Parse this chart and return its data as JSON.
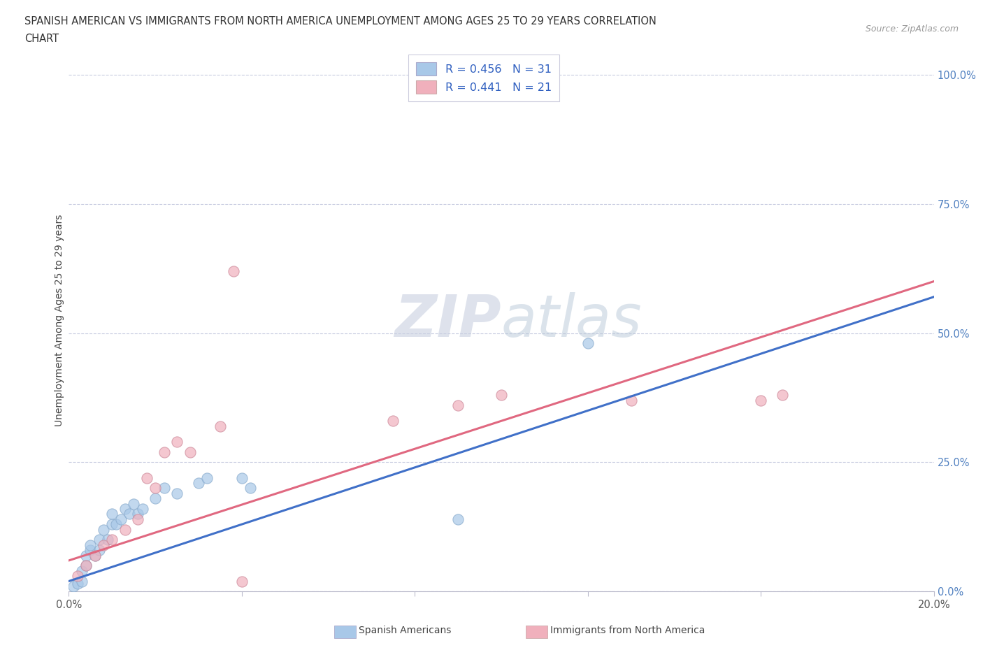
{
  "title_line1": "SPANISH AMERICAN VS IMMIGRANTS FROM NORTH AMERICA UNEMPLOYMENT AMONG AGES 25 TO 29 YEARS CORRELATION",
  "title_line2": "CHART",
  "source_text": "Source: ZipAtlas.com",
  "ylabel": "Unemployment Among Ages 25 to 29 years",
  "xlim": [
    0.0,
    0.2
  ],
  "ylim": [
    0.0,
    1.05
  ],
  "ytick_values": [
    0.0,
    0.25,
    0.5,
    0.75,
    1.0
  ],
  "blue_color": "#a8c8e8",
  "pink_color": "#f0b0bc",
  "blue_line_color": "#4070c8",
  "pink_line_color": "#e06880",
  "grid_color": "#c8cce0",
  "watermark_color": "#c8d0e0",
  "blue_scatter_x": [
    0.001,
    0.002,
    0.003,
    0.003,
    0.004,
    0.004,
    0.005,
    0.005,
    0.006,
    0.007,
    0.007,
    0.008,
    0.009,
    0.01,
    0.01,
    0.011,
    0.012,
    0.013,
    0.014,
    0.015,
    0.016,
    0.017,
    0.02,
    0.022,
    0.025,
    0.03,
    0.032,
    0.04,
    0.042,
    0.09,
    0.12
  ],
  "blue_scatter_y": [
    0.01,
    0.015,
    0.02,
    0.04,
    0.05,
    0.07,
    0.08,
    0.09,
    0.07,
    0.08,
    0.1,
    0.12,
    0.1,
    0.13,
    0.15,
    0.13,
    0.14,
    0.16,
    0.15,
    0.17,
    0.15,
    0.16,
    0.18,
    0.2,
    0.19,
    0.21,
    0.22,
    0.22,
    0.2,
    0.14,
    0.48
  ],
  "pink_scatter_x": [
    0.002,
    0.004,
    0.006,
    0.008,
    0.01,
    0.013,
    0.016,
    0.018,
    0.02,
    0.022,
    0.025,
    0.028,
    0.035,
    0.038,
    0.04,
    0.075,
    0.09,
    0.1,
    0.13,
    0.16,
    0.165
  ],
  "pink_scatter_y": [
    0.03,
    0.05,
    0.07,
    0.09,
    0.1,
    0.12,
    0.14,
    0.22,
    0.2,
    0.27,
    0.29,
    0.27,
    0.32,
    0.62,
    0.02,
    0.33,
    0.36,
    0.38,
    0.37,
    0.37,
    0.38
  ],
  "blue_line_y0": 0.02,
  "blue_line_y1": 0.57,
  "pink_line_y0": 0.06,
  "pink_line_y1": 0.6,
  "legend_text1": "R = 0.456   N = 31",
  "legend_text2": "R = 0.441   N = 21",
  "bottom_legend1": "Spanish Americans",
  "bottom_legend2": "Immigrants from North America",
  "watermark": "ZIPatlas"
}
